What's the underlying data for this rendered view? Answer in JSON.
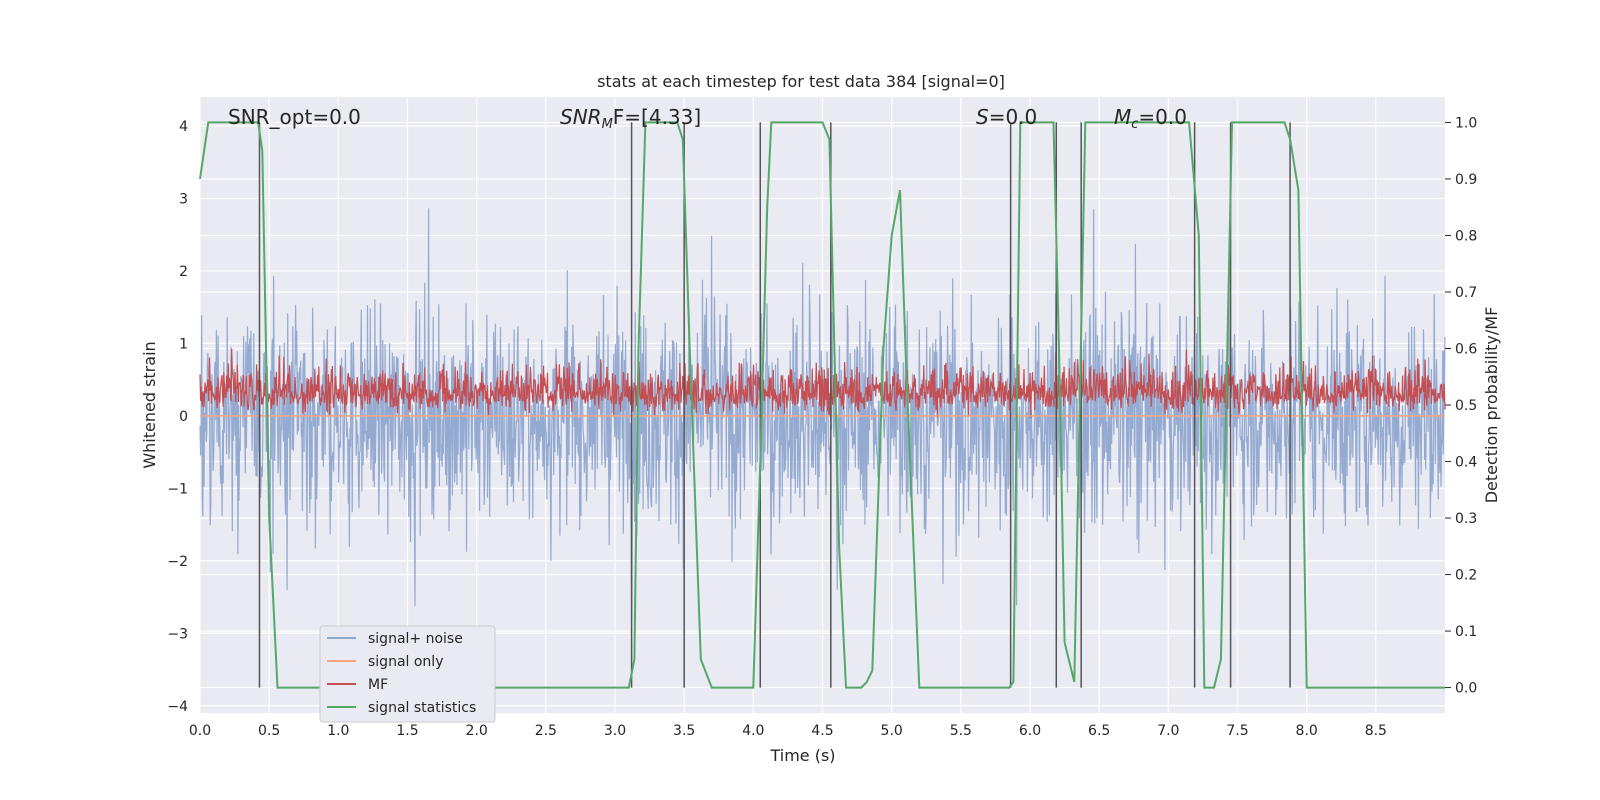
{
  "chart_data": {
    "type": "line",
    "title": "stats at each timestep for test data 384 [signal=0]",
    "xlabel": "Time (s)",
    "ylabel": "Whitened strain",
    "y2label": "Detection probability/MF",
    "xlim": [
      0.0,
      9.0
    ],
    "ylim": [
      -4.1,
      4.4
    ],
    "y2lim": [
      -0.045,
      1.045
    ],
    "xticks": [
      "0.0",
      "0.5",
      "1.0",
      "1.5",
      "2.0",
      "2.5",
      "3.0",
      "3.5",
      "4.0",
      "4.5",
      "5.0",
      "5.5",
      "6.0",
      "6.5",
      "7.0",
      "7.5",
      "8.0",
      "8.5"
    ],
    "yticks": [
      "4",
      "3",
      "2",
      "1",
      "0",
      "−1",
      "−2",
      "−3",
      "−4"
    ],
    "y2ticks": [
      "1.0",
      "0.9",
      "0.8",
      "0.7",
      "0.6",
      "0.5",
      "0.4",
      "0.3",
      "0.2",
      "0.1",
      "0.0"
    ],
    "grid": true,
    "legend_position": "lower-left",
    "annotations": {
      "snr_opt": "SNR_opt=0.0",
      "snr_mf_main": "SNR",
      "snr_mf_sub": "M",
      "snr_mf_rest": "F=[4.33]",
      "s_main": "S",
      "s_rest": "=0.0",
      "mc_main": "M",
      "mc_sub": "c",
      "mc_rest": "=0.0"
    },
    "series": [
      {
        "name": "signal+ noise",
        "color": "#8fa6cf",
        "description": "whitened strain noise, amplitude roughly within [-3.6, 3.6]"
      },
      {
        "name": "signal only",
        "color": "#f4a582",
        "values_constant": 0.0
      },
      {
        "name": "MF",
        "color": "#c44e52",
        "description": "matched-filter output around 0.5 on right axis"
      },
      {
        "name": "signal statistics",
        "color": "#55a868",
        "x": [
          0.0,
          0.06,
          0.42,
          0.45,
          0.5,
          0.56,
          0.6,
          3.1,
          3.14,
          3.17,
          3.22,
          3.45,
          3.49,
          3.54,
          3.62,
          3.7,
          3.75,
          4.0,
          4.05,
          4.1,
          4.13,
          4.2,
          4.5,
          4.55,
          4.62,
          4.67,
          4.72,
          4.78,
          4.82,
          4.86,
          4.94,
          5.0,
          5.06,
          5.1,
          5.2,
          5.85,
          5.88,
          5.93,
          6.17,
          6.21,
          6.25,
          6.32,
          6.4,
          6.45,
          7.15,
          7.22,
          7.26,
          7.33,
          7.38,
          7.46,
          7.51,
          7.84,
          7.88,
          7.94,
          8.0,
          8.05,
          8.1,
          8.4,
          9.0
        ],
        "values": [
          0.9,
          1.0,
          1.0,
          0.95,
          0.3,
          0.0,
          0.0,
          0.0,
          0.05,
          0.6,
          1.0,
          1.0,
          0.97,
          0.6,
          0.05,
          0.0,
          0.0,
          0.0,
          0.4,
          0.85,
          1.0,
          1.0,
          1.0,
          0.97,
          0.25,
          0.0,
          0.0,
          0.0,
          0.01,
          0.03,
          0.6,
          0.8,
          0.88,
          0.6,
          0.0,
          0.0,
          0.01,
          1.0,
          1.0,
          0.6,
          0.08,
          0.01,
          1.0,
          1.0,
          1.0,
          0.8,
          0.0,
          0.0,
          0.05,
          1.0,
          1.0,
          1.0,
          0.97,
          0.88,
          0.0,
          0.0,
          0.0,
          0.0,
          0.0
        ]
      }
    ],
    "vertical_lines_x": [
      0.43,
      3.12,
      3.5,
      4.05,
      4.56,
      5.86,
      6.19,
      6.37,
      7.19,
      7.45,
      7.88
    ]
  }
}
